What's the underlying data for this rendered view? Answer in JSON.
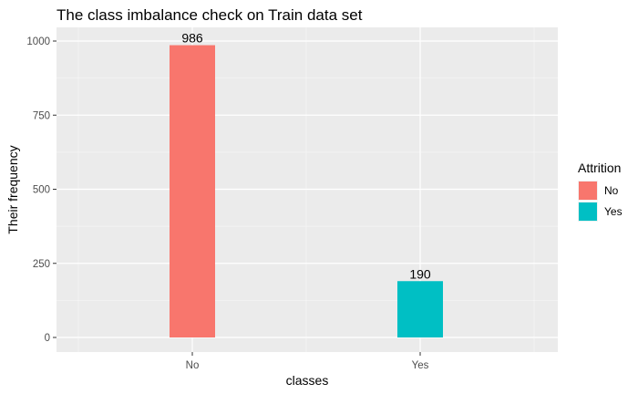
{
  "chart_data": {
    "type": "bar",
    "title": "The class imbalance check on Train data set",
    "xlabel": "classes",
    "ylabel": "Their frequency",
    "categories": [
      "No",
      "Yes"
    ],
    "values": [
      986,
      190
    ],
    "data_labels": [
      "986",
      "190"
    ],
    "colors": [
      "#F8766D",
      "#00BFC4"
    ],
    "ylim": [
      0,
      1000
    ],
    "yticks": [
      0,
      250,
      500,
      750,
      1000
    ],
    "ytick_labels": [
      "0",
      "250",
      "500",
      "750",
      "1000"
    ],
    "grid": true,
    "legend": {
      "title": "Attrition",
      "placement": "right",
      "entries": [
        "No",
        "Yes"
      ]
    }
  }
}
